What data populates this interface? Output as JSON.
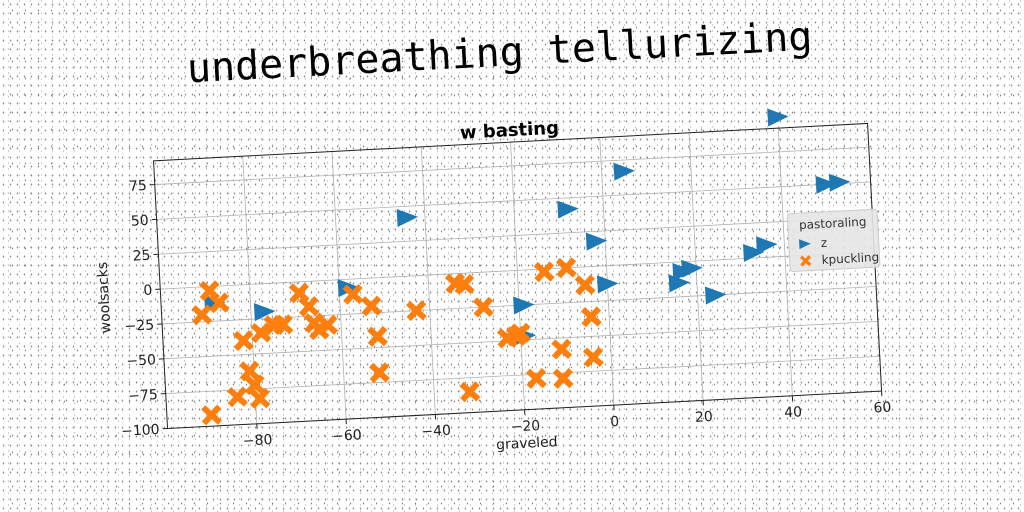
{
  "suptitle": "underbreathing tellurizing",
  "chart_data": {
    "type": "scatter",
    "title": "w basting",
    "xlabel": "graveled",
    "ylabel": "woolsacks",
    "xlim": [
      -100,
      60
    ],
    "ylim": [
      -100,
      92
    ],
    "xticks": [
      -80,
      -60,
      -40,
      -20,
      0,
      20,
      40,
      60
    ],
    "yticks": [
      -100,
      -75,
      -50,
      -25,
      0,
      25,
      50,
      75
    ],
    "grid": true,
    "legend": {
      "title": "pastoraling",
      "placement": "right"
    },
    "series": [
      {
        "name": "z",
        "marker": "triangle-right",
        "color": "#1f77b4",
        "points": [
          [
            -88,
            -12
          ],
          [
            -77,
            -20
          ],
          [
            -58,
            -6
          ],
          [
            -44,
            42
          ],
          [
            -19,
            -25
          ],
          [
            -19,
            -47
          ],
          [
            -8,
            42
          ],
          [
            -2,
            18
          ],
          [
            0,
            -13
          ],
          [
            5,
            67
          ],
          [
            16,
            -15
          ],
          [
            17,
            -7
          ],
          [
            19,
            -5
          ],
          [
            24,
            -25
          ],
          [
            33,
            4
          ],
          [
            36,
            9
          ],
          [
            40,
            100
          ],
          [
            50,
            50
          ],
          [
            53,
            51
          ]
        ]
      },
      {
        "name": "kpuckling",
        "marker": "x-filled",
        "color": "#ff7f0e",
        "points": [
          [
            -91,
            -20
          ],
          [
            -89,
            -3
          ],
          [
            -87,
            -12
          ],
          [
            -90,
            -92
          ],
          [
            -84,
            -80
          ],
          [
            -82,
            -40
          ],
          [
            -81,
            -62
          ],
          [
            -80,
            -72
          ],
          [
            -79,
            -82
          ],
          [
            -78,
            -35
          ],
          [
            -75,
            -30
          ],
          [
            -73,
            -30
          ],
          [
            -69,
            -8
          ],
          [
            -67,
            -18
          ],
          [
            -66,
            -30
          ],
          [
            -65,
            -35
          ],
          [
            -63,
            -32
          ],
          [
            -57,
            -11
          ],
          [
            -53,
            -20
          ],
          [
            -52,
            -42
          ],
          [
            -52,
            -68
          ],
          [
            -43,
            -25
          ],
          [
            -34,
            -7
          ],
          [
            -32,
            -8
          ],
          [
            -32,
            -85
          ],
          [
            -28,
            -25
          ],
          [
            -23,
            -48
          ],
          [
            -21,
            -47
          ],
          [
            -20,
            -45
          ],
          [
            -17,
            -78
          ],
          [
            -14,
            -2
          ],
          [
            -11,
            -58
          ],
          [
            -11,
            -79
          ],
          [
            -9,
            0
          ],
          [
            -5,
            -13
          ],
          [
            -4,
            -36
          ],
          [
            -4,
            -65
          ]
        ]
      }
    ]
  }
}
